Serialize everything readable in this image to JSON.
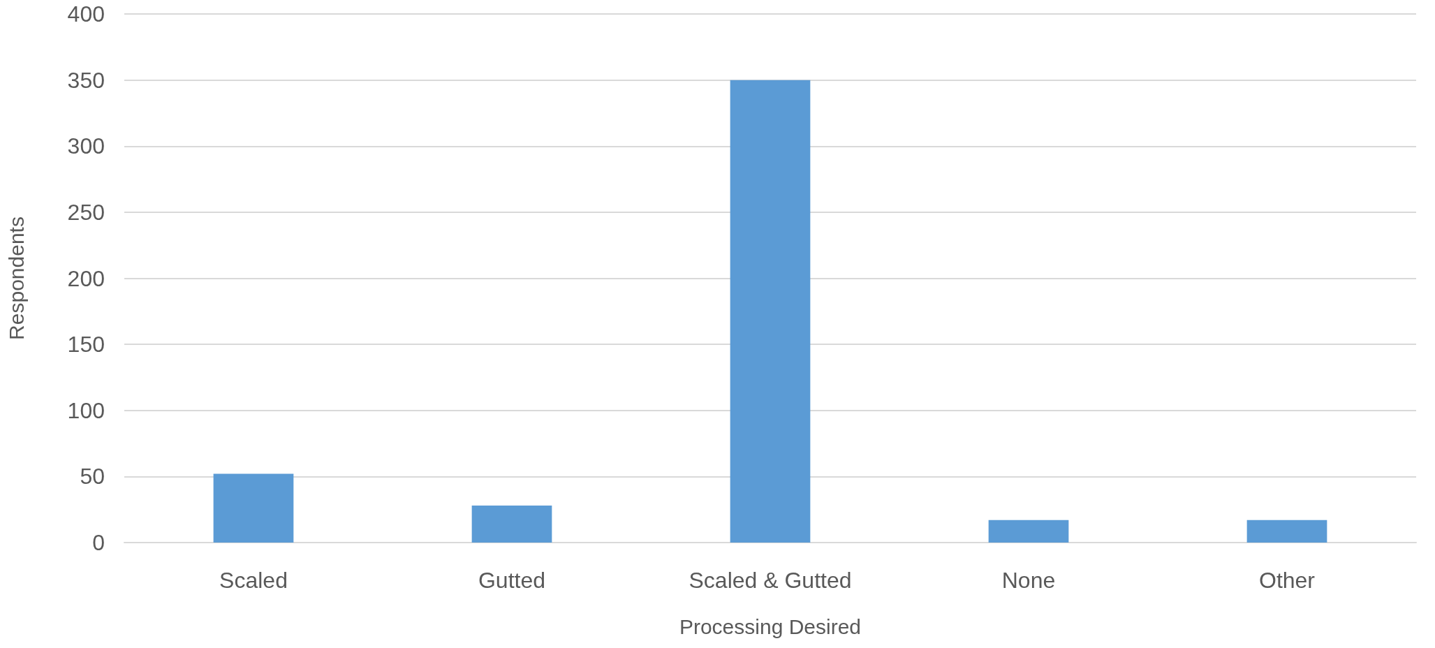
{
  "chart_data": {
    "type": "bar",
    "xlabel": "Processing Desired",
    "ylabel": "Respondents",
    "categories": [
      "Scaled",
      "Gutted",
      "Scaled & Gutted",
      "None",
      "Other"
    ],
    "values": [
      52,
      28,
      350,
      17,
      17
    ],
    "color": "#5b9bd5",
    "ylim": [
      0,
      400
    ],
    "yticks": [
      0,
      50,
      100,
      150,
      200,
      250,
      300,
      350,
      400
    ],
    "grid": "y"
  }
}
